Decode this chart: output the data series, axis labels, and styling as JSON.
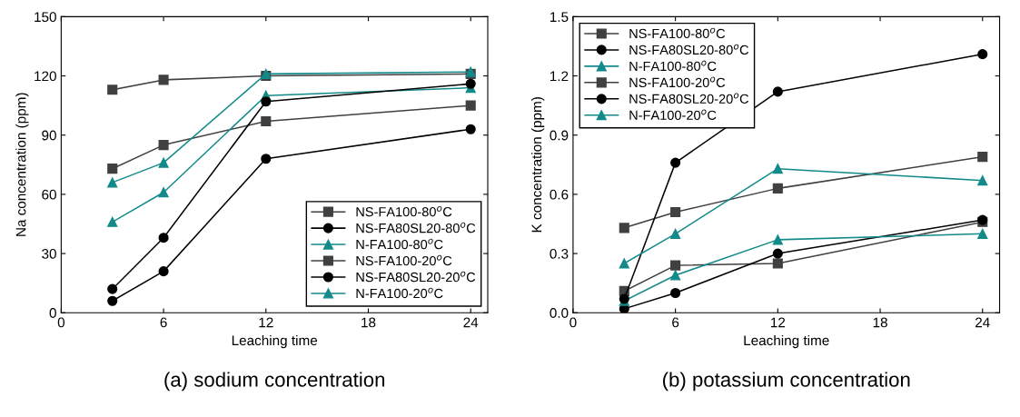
{
  "chart_data": [
    {
      "type": "line",
      "xlabel": "Leaching time",
      "ylabel": "Na concentration (ppm)",
      "x": [
        3,
        6,
        12,
        24
      ],
      "xlim": [
        0,
        25
      ],
      "xticks": [
        0,
        6,
        12,
        18,
        24
      ],
      "ylim": [
        0,
        150
      ],
      "yticks": [
        0,
        30,
        60,
        90,
        120,
        150
      ],
      "grid": false,
      "legend": "bottom right",
      "annotations": [
        "(a) sodium concentration"
      ],
      "series": [
        {
          "name": "NS-FA100-80$^{o}$C",
          "color": "#404040",
          "marker": "square",
          "values": [
            73,
            85,
            97,
            105
          ]
        },
        {
          "name": "NS-FA80SL20-80$^{o}$C",
          "color": "#000000",
          "marker": "circle",
          "values": [
            6,
            21,
            78,
            93
          ]
        },
        {
          "name": "N-FA100-80$^{o}$C",
          "color": "#138a8a",
          "marker": "triangle",
          "values": [
            46,
            61,
            110,
            114
          ]
        },
        {
          "name": "NS-FA100-20$^{o}$C",
          "color": "#404040",
          "marker": "square",
          "values": [
            113,
            118,
            120,
            121
          ]
        },
        {
          "name": "NS-FA80SL20-20$^{o}$C",
          "color": "#000000",
          "marker": "circle",
          "values": [
            12,
            38,
            107,
            116
          ]
        },
        {
          "name": "N-FA100-20$^{o}$C",
          "color": "#138a8a",
          "marker": "triangle",
          "values": [
            66,
            76,
            121,
            122
          ]
        }
      ]
    },
    {
      "type": "line",
      "xlabel": "Leaching time",
      "ylabel": "K concentration (ppm)",
      "x": [
        3,
        6,
        12,
        24
      ],
      "xlim": [
        0,
        25
      ],
      "xticks": [
        0,
        6,
        12,
        18,
        24
      ],
      "ylim": [
        0,
        1.5
      ],
      "yticks": [
        {
          "value": 0,
          "label": "0.0"
        },
        0.3,
        0.6,
        0.9,
        1.2,
        1.5
      ],
      "grid": false,
      "legend": "top left",
      "annotations": [
        "(b) potassium concentration"
      ],
      "series": [
        {
          "name": "NS-FA100-80$^{o}$C",
          "color": "#404040",
          "marker": "square",
          "values": [
            0.11,
            0.24,
            0.25,
            0.46
          ]
        },
        {
          "name": "NS-FA80SL20-80$^{o}$C",
          "color": "#000000",
          "marker": "circle",
          "values": [
            0.02,
            0.1,
            0.3,
            0.47
          ]
        },
        {
          "name": "N-FA100-80$^{o}$C",
          "color": "#138a8a",
          "marker": "triangle",
          "values": [
            0.06,
            0.19,
            0.37,
            0.4
          ]
        },
        {
          "name": "NS-FA100-20$^{o}$C",
          "color": "#404040",
          "marker": "square",
          "values": [
            0.43,
            0.51,
            0.63,
            0.79
          ]
        },
        {
          "name": "NS-FA80SL20-20$^{o}$C",
          "color": "#000000",
          "marker": "circle",
          "values": [
            0.07,
            0.76,
            1.12,
            1.31
          ]
        },
        {
          "name": "N-FA100-20$^{o}$C",
          "color": "#138a8a",
          "marker": "triangle",
          "values": [
            0.25,
            0.4,
            0.73,
            0.67
          ]
        }
      ]
    }
  ]
}
